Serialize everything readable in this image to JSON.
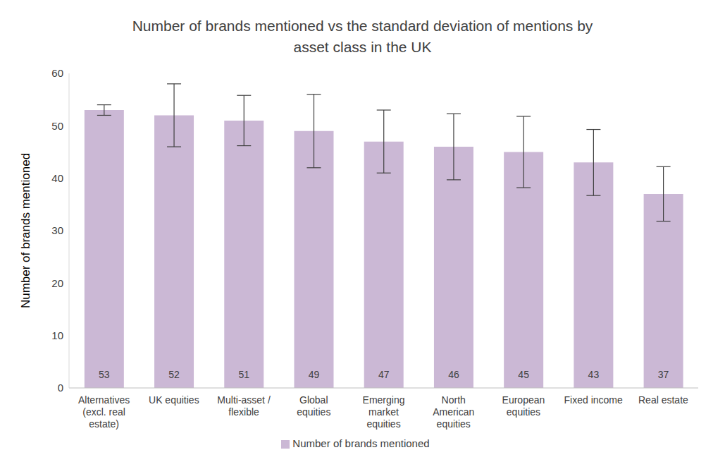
{
  "chart_data": {
    "type": "bar",
    "title": "Number of brands mentioned vs the standard deviation of mentions by asset class in the UK",
    "y_label": "Number of brands mentioned",
    "categories": [
      "Alternatives (excl. real estate)",
      "UK equities",
      "Multi-asset / flexible",
      "Global equities",
      "Emerging market equities",
      "North American equities",
      "European equities",
      "Fixed income",
      "Real estate"
    ],
    "series": [
      {
        "name": "Number of brands mentioned",
        "color": "#cbb8d5",
        "values": [
          53,
          52,
          51,
          49,
          47,
          46,
          45,
          43,
          37
        ],
        "errors": [
          1,
          6,
          4.8,
          7,
          6,
          6.3,
          6.8,
          6.3,
          5.2
        ]
      }
    ],
    "ylim": [
      0,
      60
    ],
    "yticks": [
      0,
      10,
      20,
      30,
      40,
      50,
      60
    ],
    "grid": false,
    "legend": "bottom",
    "data_labels": true
  }
}
